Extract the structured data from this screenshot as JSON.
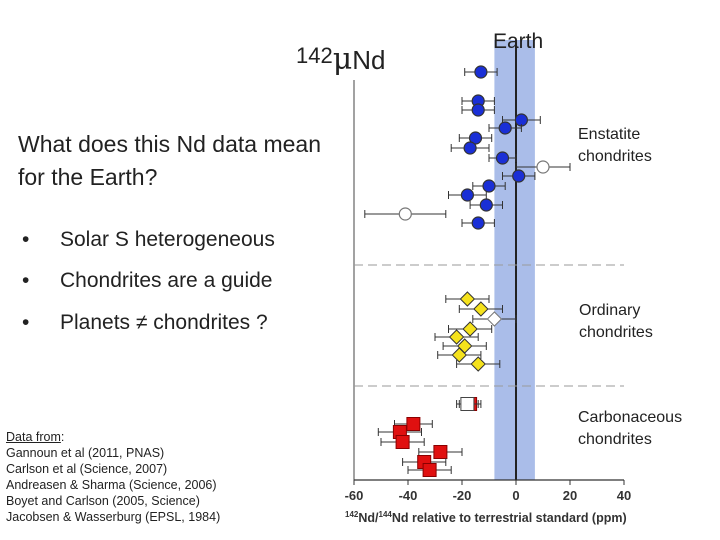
{
  "slide": {
    "ylabel": {
      "superscript": "142",
      "mu": "μ",
      "element": "Nd"
    },
    "question": "What does this Nd data mean for the Earth?",
    "bullets": [
      {
        "mark": "•",
        "text": "Solar S heterogeneous"
      },
      {
        "mark": "•",
        "text": "Chondrites are a guide"
      },
      {
        "mark": "•",
        "text": "Planets ≠ chondrites ?"
      }
    ],
    "references": {
      "heading": "Data from",
      "heading_suffix": ":",
      "items": [
        "Gannoun et al (2011, PNAS)",
        "Carlson et al (Science, 2007)",
        "Andreasen & Sharma (Science, 2006)",
        "Boyet and Carlson (2005, Science)",
        "Jacobsen & Wasserburg (EPSL, 1984)"
      ]
    }
  },
  "chart_data": {
    "type": "scatter",
    "title": "",
    "earth_label": "Earth",
    "xlabel_parts": {
      "sup1": "142",
      "mid": "Nd/",
      "sup2": "144",
      "rest": "Nd relative to terrestrial standard (ppm)"
    },
    "xlim": [
      -60,
      40
    ],
    "xticks": [
      -60,
      -40,
      -20,
      0,
      20,
      40
    ],
    "earth_band": [
      -8,
      7
    ],
    "colors": {
      "enstatite": "#1a2fd6",
      "ordinary": "#f5e21c",
      "carbonaceous": "#e01010",
      "band": "#aabde9"
    },
    "groups": [
      {
        "name": "Enstatite chondrites",
        "label_lines": [
          "Enstatite",
          "chondrites"
        ],
        "points": [
          {
            "x": -13,
            "err": 6,
            "marker": "circle",
            "fill": "enstatite"
          },
          {
            "x": -14,
            "err": 6,
            "marker": "circle",
            "fill": "enstatite"
          },
          {
            "x": -14,
            "err": 6,
            "marker": "circle",
            "fill": "enstatite"
          },
          {
            "x": 2,
            "err": 7,
            "marker": "circle",
            "fill": "enstatite"
          },
          {
            "x": -4,
            "err": 6,
            "marker": "circle",
            "fill": "enstatite"
          },
          {
            "x": -15,
            "err": 6,
            "marker": "circle",
            "fill": "enstatite"
          },
          {
            "x": -17,
            "err": 7,
            "marker": "circle",
            "fill": "enstatite"
          },
          {
            "x": -5,
            "err": 5,
            "marker": "circle",
            "fill": "enstatite"
          },
          {
            "x": 10,
            "err": 10,
            "marker": "circle",
            "fill": "open"
          },
          {
            "x": 1,
            "err": 6,
            "marker": "circle",
            "fill": "enstatite"
          },
          {
            "x": -10,
            "err": 6,
            "marker": "circle",
            "fill": "enstatite"
          },
          {
            "x": -18,
            "err": 7,
            "marker": "circle",
            "fill": "enstatite"
          },
          {
            "x": -11,
            "err": 6,
            "marker": "circle",
            "fill": "enstatite"
          },
          {
            "x": -41,
            "err": 15,
            "marker": "circle",
            "fill": "open"
          },
          {
            "x": -14,
            "err": 6,
            "marker": "circle",
            "fill": "enstatite"
          }
        ]
      },
      {
        "name": "Ordinary chondrites",
        "label_lines": [
          "Ordinary",
          "chondrites"
        ],
        "points": [
          {
            "x": -18,
            "err": 8,
            "marker": "diamond",
            "fill": "ordinary"
          },
          {
            "x": -13,
            "err": 8,
            "marker": "diamond",
            "fill": "ordinary"
          },
          {
            "x": -8,
            "err": 8,
            "marker": "diamond",
            "fill": "open"
          },
          {
            "x": -17,
            "err": 8,
            "marker": "diamond",
            "fill": "ordinary"
          },
          {
            "x": -22,
            "err": 8,
            "marker": "diamond",
            "fill": "ordinary"
          },
          {
            "x": -19,
            "err": 8,
            "marker": "diamond",
            "fill": "ordinary"
          },
          {
            "x": -21,
            "err": 8,
            "marker": "diamond",
            "fill": "ordinary"
          },
          {
            "x": -14,
            "err": 8,
            "marker": "diamond",
            "fill": "ordinary"
          }
        ]
      },
      {
        "name": "Carbonaceous chondrites",
        "label_lines": [
          "Carbonaceous",
          "chondrites"
        ],
        "points": [
          {
            "x": -17,
            "err": 4,
            "marker": "square",
            "fill": "carbonaceous"
          },
          {
            "x": -18,
            "err": 4,
            "marker": "square",
            "fill": "open"
          },
          {
            "x": -38,
            "err": 7,
            "marker": "square",
            "fill": "carbonaceous"
          },
          {
            "x": -43,
            "err": 8,
            "marker": "square",
            "fill": "carbonaceous"
          },
          {
            "x": -42,
            "err": 8,
            "marker": "square",
            "fill": "carbonaceous"
          },
          {
            "x": -28,
            "err": 8,
            "marker": "square",
            "fill": "carbonaceous"
          },
          {
            "x": -34,
            "err": 8,
            "marker": "square",
            "fill": "carbonaceous"
          },
          {
            "x": -32,
            "err": 8,
            "marker": "square",
            "fill": "carbonaceous"
          }
        ]
      }
    ]
  }
}
